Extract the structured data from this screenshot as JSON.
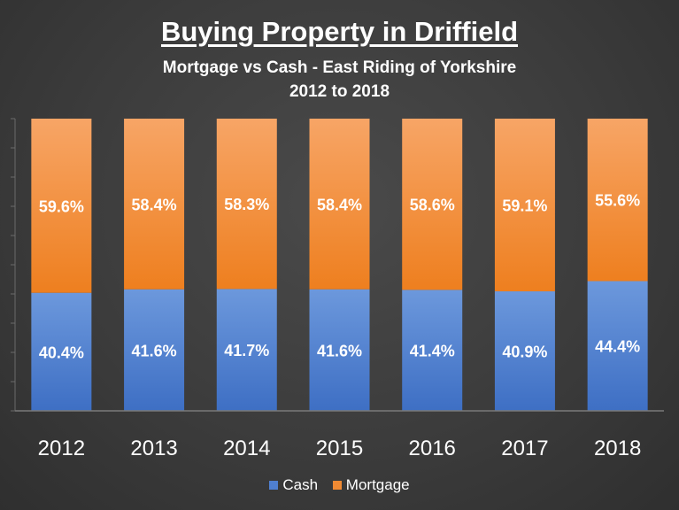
{
  "colors": {
    "cash": "#4f7fd0",
    "mortgage": "#f08a33",
    "background": "#3c3c3c",
    "text": "#ffffff"
  },
  "chart_data": {
    "type": "bar",
    "stacked": true,
    "title": "Buying Property in Driffield",
    "subtitle_line1": "Mortgage vs Cash - East Riding of Yorkshire",
    "subtitle_line2": "2012 to 2018",
    "categories": [
      "2012",
      "2013",
      "2014",
      "2015",
      "2016",
      "2017",
      "2018"
    ],
    "series": [
      {
        "name": "Cash",
        "values": [
          40.4,
          41.6,
          41.7,
          41.6,
          41.4,
          40.9,
          44.4
        ],
        "labels": [
          "40.4%",
          "41.6%",
          "41.7%",
          "41.6%",
          "41.4%",
          "40.9%",
          "44.4%"
        ]
      },
      {
        "name": "Mortgage",
        "values": [
          59.6,
          58.4,
          58.3,
          58.4,
          58.6,
          59.1,
          55.6
        ],
        "labels": [
          "59.6%",
          "58.4%",
          "58.3%",
          "58.4%",
          "58.6%",
          "59.1%",
          "55.6%"
        ]
      }
    ],
    "ylim": [
      0,
      100
    ],
    "grid": false,
    "legend_position": "bottom"
  }
}
